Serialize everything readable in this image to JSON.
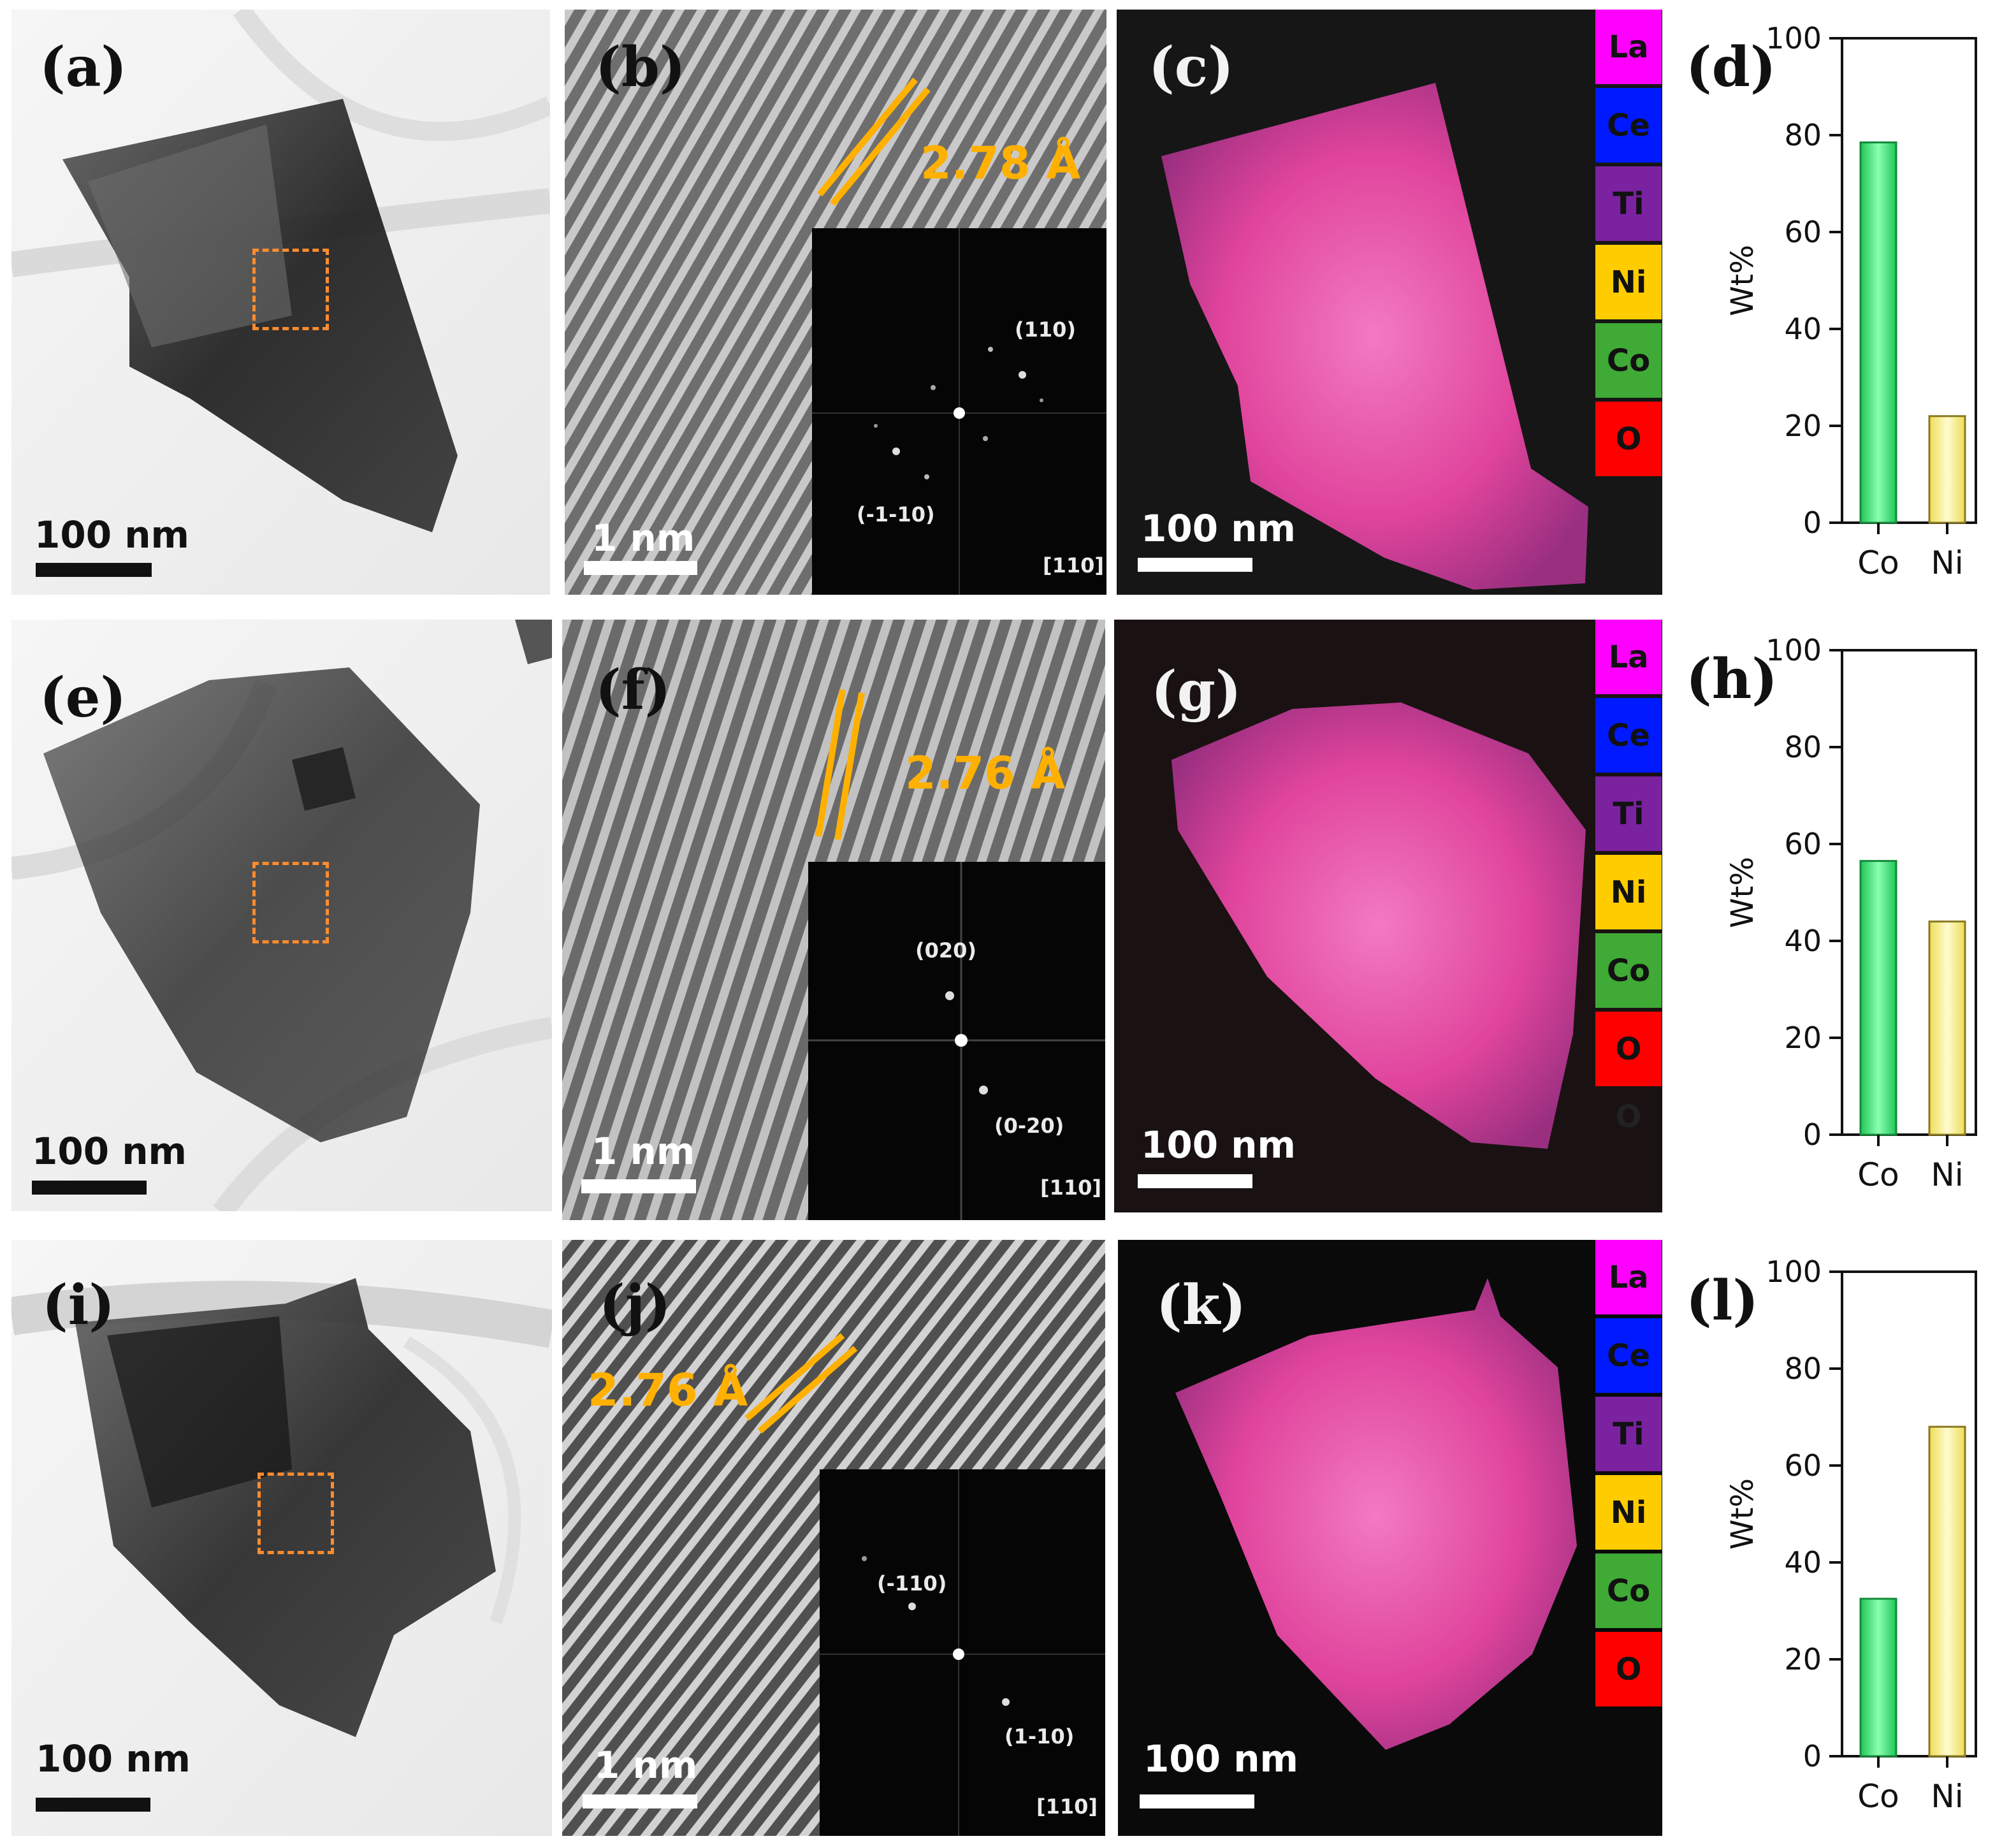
{
  "rows": [
    {
      "tem_label": "(a)",
      "hr_label": "(b)",
      "map_label": "(c)",
      "chart_label": "(d)",
      "tem_scale": "100 nm",
      "hr_scale": "1 nm",
      "map_scale": "100 nm",
      "d_spacing": "2.78 Å",
      "fft_spots": [
        "(110)",
        "(-1-10)"
      ],
      "zone_axis": "[110]"
    },
    {
      "tem_label": "(e)",
      "hr_label": "(f)",
      "map_label": "(g)",
      "chart_label": "(h)",
      "tem_scale": "100 nm",
      "hr_scale": "1 nm",
      "map_scale": "100 nm",
      "d_spacing": "2.76 Å",
      "fft_spots": [
        "(020)",
        "(0-20)"
      ],
      "zone_axis": "[110]"
    },
    {
      "tem_label": "(i)",
      "hr_label": "(j)",
      "map_label": "(k)",
      "chart_label": "(l)",
      "tem_scale": "100 nm",
      "hr_scale": "1 nm",
      "map_scale": "100 nm",
      "d_spacing": "2.76 Å",
      "fft_spots": [
        "(-110)",
        "(1-10)"
      ],
      "zone_axis": "[110]"
    }
  ],
  "legend": {
    "items": [
      {
        "label": "La",
        "color": "#ff00ff"
      },
      {
        "label": "Ce",
        "color": "#0019ff"
      },
      {
        "label": "Ti",
        "color": "#7a22a0"
      },
      {
        "label": "Ni",
        "color": "#ffcc00"
      },
      {
        "label": "Co",
        "color": "#3faa35"
      },
      {
        "label": "O",
        "color": "#ff0000"
      }
    ],
    "extra_row2": "O"
  },
  "colors": {
    "co_bar": "#33e070",
    "ni_bar": "#f5ec80",
    "dspace": "#ffb000",
    "roi_box": "#ff8c2e",
    "map_pink": "#e3489e"
  },
  "chart_data": [
    {
      "type": "bar",
      "categories": [
        "Co",
        "Ni"
      ],
      "values": [
        78.5,
        22
      ],
      "ylabel": "Wt%",
      "ylim": [
        0,
        100
      ],
      "yticks": [
        0,
        20,
        40,
        60,
        80,
        100
      ]
    },
    {
      "type": "bar",
      "categories": [
        "Co",
        "Ni"
      ],
      "values": [
        56.5,
        44
      ],
      "ylabel": "Wt%",
      "ylim": [
        0,
        100
      ],
      "yticks": [
        0,
        20,
        40,
        60,
        80,
        100
      ]
    },
    {
      "type": "bar",
      "categories": [
        "Co",
        "Ni"
      ],
      "values": [
        32.5,
        68
      ],
      "ylabel": "Wt%",
      "ylim": [
        0,
        100
      ],
      "yticks": [
        0,
        20,
        40,
        60,
        80,
        100
      ]
    }
  ]
}
